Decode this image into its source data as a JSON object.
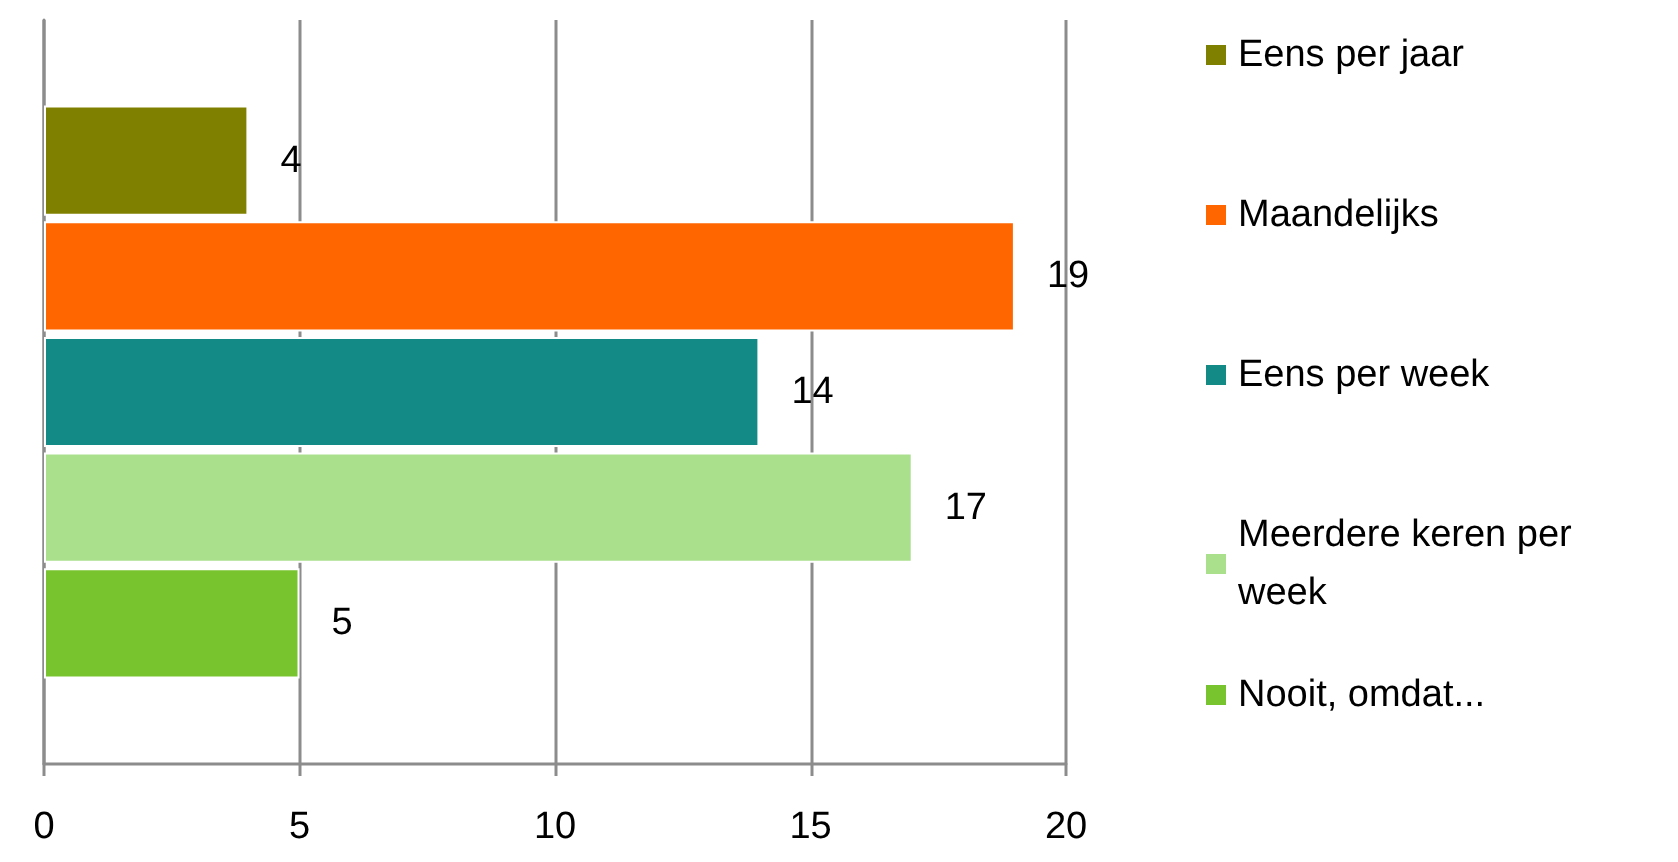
{
  "chart_data": {
    "type": "bar",
    "orientation": "horizontal",
    "categories": [
      null
    ],
    "series": [
      {
        "name": "Eens per jaar",
        "color": "#808000",
        "values": [
          4
        ]
      },
      {
        "name": "Maandelijks",
        "color": "#ff6600",
        "values": [
          19
        ]
      },
      {
        "name": "Eens per week",
        "color": "#138a86",
        "values": [
          14
        ]
      },
      {
        "name": "Meerdere keren per week",
        "color": "#aadf8c",
        "values": [
          17
        ]
      },
      {
        "name": "Nooit, omdat...",
        "color": "#78c42f",
        "values": [
          5
        ]
      }
    ],
    "xlim": [
      0,
      20
    ],
    "xticks": [
      0,
      5,
      10,
      15,
      20
    ],
    "grid": "x",
    "legend": "right",
    "data_labels": true
  }
}
